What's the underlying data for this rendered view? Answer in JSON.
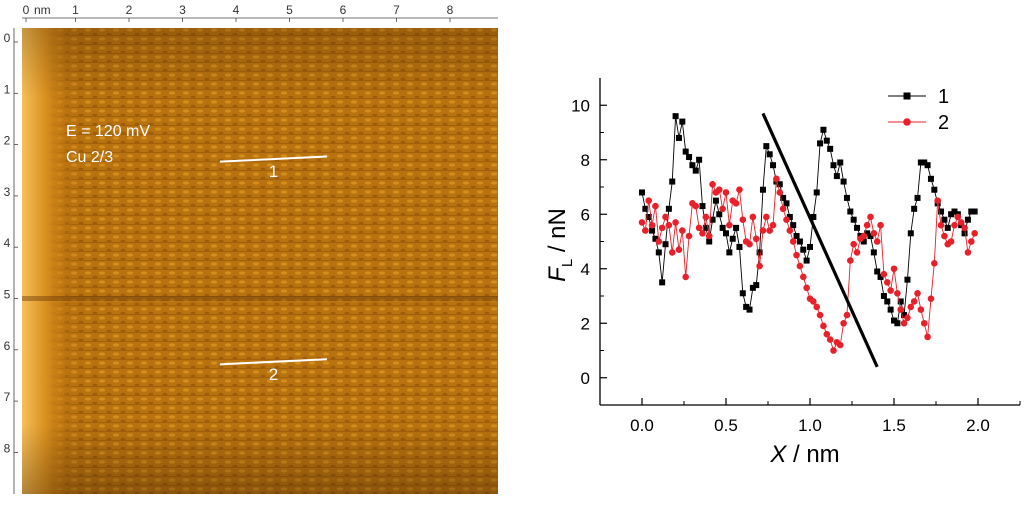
{
  "stm_image": {
    "x_axis_unit": "nm",
    "x_ticks": [
      "0",
      "1",
      "2",
      "3",
      "4",
      "5",
      "6",
      "7",
      "8"
    ],
    "y_ticks": [
      "0",
      "1",
      "2",
      "3",
      "4",
      "5",
      "6",
      "7",
      "8"
    ],
    "annotation_lines": [
      "E = 120 mV",
      "Cu 2/3"
    ],
    "profile_lines": [
      {
        "label": "1",
        "from_nm": [
          3.7,
          2.45
        ],
        "to_nm": [
          5.7,
          2.35
        ]
      },
      {
        "label": "2",
        "from_nm": [
          3.7,
          6.4
        ],
        "to_nm": [
          5.7,
          6.3
        ]
      }
    ],
    "colors": {
      "bright": "#f0a828",
      "dark": "#6a3a08",
      "mid": "#b8720f",
      "line": "#ffffff"
    }
  },
  "chart_data": {
    "type": "line",
    "xlabel_var": "X",
    "xlabel_unit": " / nm",
    "ylabel_var": "F",
    "ylabel_sub": "L",
    "ylabel_unit": " / nN",
    "xlim": [
      -0.25,
      2.25
    ],
    "ylim": [
      -1.0,
      11.0
    ],
    "x_ticks": [
      0.0,
      0.5,
      1.0,
      1.5,
      2.0
    ],
    "x_tick_labels": [
      "0.0",
      "0.5",
      "1.0",
      "1.5",
      "2.0"
    ],
    "y_ticks": [
      0,
      2,
      4,
      6,
      8,
      10
    ],
    "y_tick_labels": [
      "0",
      "2",
      "4",
      "6",
      "8",
      "10"
    ],
    "legend_position": "top-right",
    "series": [
      {
        "name": "1",
        "color": "#000000",
        "marker": "square",
        "x": [
          0.0,
          0.02,
          0.04,
          0.06,
          0.08,
          0.1,
          0.12,
          0.14,
          0.16,
          0.18,
          0.2,
          0.22,
          0.24,
          0.26,
          0.28,
          0.3,
          0.32,
          0.34,
          0.36,
          0.38,
          0.4,
          0.42,
          0.44,
          0.46,
          0.48,
          0.5,
          0.52,
          0.54,
          0.56,
          0.58,
          0.6,
          0.62,
          0.64,
          0.66,
          0.68,
          0.7,
          0.72,
          0.74,
          0.76,
          0.78,
          0.8,
          0.82,
          0.84,
          0.86,
          0.88,
          0.9,
          0.92,
          0.94,
          0.96,
          0.98,
          1.0,
          1.02,
          1.04,
          1.06,
          1.08,
          1.1,
          1.12,
          1.14,
          1.16,
          1.18,
          1.2,
          1.22,
          1.24,
          1.26,
          1.28,
          1.3,
          1.32,
          1.34,
          1.36,
          1.38,
          1.4,
          1.42,
          1.44,
          1.46,
          1.48,
          1.5,
          1.52,
          1.54,
          1.56,
          1.58,
          1.6,
          1.62,
          1.64,
          1.66,
          1.68,
          1.7,
          1.72,
          1.74,
          1.76,
          1.78,
          1.8,
          1.82,
          1.84,
          1.86,
          1.88,
          1.9,
          1.92,
          1.94,
          1.96,
          1.98
        ],
        "y": [
          6.8,
          6.2,
          5.9,
          5.4,
          5.1,
          4.6,
          3.5,
          4.9,
          6.2,
          7.2,
          9.6,
          8.8,
          9.4,
          8.3,
          8.1,
          7.8,
          7.6,
          8.0,
          6.3,
          5.5,
          5.0,
          5.8,
          6.5,
          6.0,
          5.5,
          5.3,
          4.6,
          5.1,
          5.5,
          4.8,
          3.1,
          2.6,
          2.5,
          3.3,
          3.4,
          4.6,
          6.9,
          8.5,
          8.2,
          7.8,
          7.2,
          7.1,
          6.6,
          6.4,
          5.9,
          5.6,
          5.2,
          5.0,
          4.7,
          4.3,
          4.8,
          5.9,
          6.8,
          8.6,
          9.1,
          8.7,
          8.4,
          7.8,
          7.4,
          7.9,
          7.2,
          6.6,
          6.1,
          5.8,
          5.5,
          5.2,
          5.0,
          5.3,
          5.2,
          4.6,
          3.9,
          3.7,
          3.0,
          2.8,
          2.5,
          2.1,
          2.0,
          2.8,
          2.3,
          3.6,
          5.3,
          6.2,
          6.6,
          7.9,
          7.9,
          7.8,
          7.3,
          6.9,
          6.4,
          6.1,
          5.8,
          5.5,
          6.0,
          6.1,
          6.0,
          5.6,
          5.3,
          5.8,
          6.1,
          6.1
        ]
      },
      {
        "name": "2",
        "color": "#e8202a",
        "marker": "circle",
        "x": [
          0.0,
          0.02,
          0.04,
          0.06,
          0.08,
          0.1,
          0.12,
          0.14,
          0.16,
          0.18,
          0.2,
          0.22,
          0.24,
          0.26,
          0.28,
          0.3,
          0.32,
          0.34,
          0.36,
          0.38,
          0.4,
          0.42,
          0.44,
          0.46,
          0.48,
          0.5,
          0.52,
          0.54,
          0.56,
          0.58,
          0.6,
          0.62,
          0.64,
          0.66,
          0.68,
          0.7,
          0.72,
          0.74,
          0.76,
          0.78,
          0.8,
          0.82,
          0.84,
          0.86,
          0.88,
          0.9,
          0.92,
          0.94,
          0.96,
          0.98,
          1.0,
          1.02,
          1.04,
          1.06,
          1.08,
          1.1,
          1.12,
          1.14,
          1.16,
          1.18,
          1.2,
          1.22,
          1.24,
          1.26,
          1.28,
          1.3,
          1.32,
          1.34,
          1.36,
          1.38,
          1.4,
          1.42,
          1.44,
          1.46,
          1.48,
          1.5,
          1.52,
          1.54,
          1.56,
          1.58,
          1.6,
          1.62,
          1.64,
          1.66,
          1.68,
          1.7,
          1.72,
          1.74,
          1.76,
          1.78,
          1.8,
          1.82,
          1.84,
          1.86,
          1.88,
          1.9,
          1.92,
          1.94,
          1.96,
          1.98
        ],
        "y": [
          5.7,
          5.4,
          6.5,
          5.6,
          6.3,
          5.0,
          5.5,
          5.9,
          5.6,
          4.6,
          5.7,
          4.7,
          5.4,
          3.7,
          5.2,
          6.4,
          6.3,
          5.5,
          5.3,
          5.9,
          5.2,
          7.1,
          6.8,
          6.9,
          6.2,
          6.8,
          5.6,
          6.5,
          6.4,
          6.9,
          5.8,
          5.0,
          4.9,
          5.9,
          5.1,
          4.1,
          5.4,
          5.9,
          5.4,
          5.6,
          7.3,
          6.8,
          6.2,
          5.8,
          5.4,
          5.0,
          4.5,
          4.1,
          3.7,
          3.3,
          2.9,
          2.8,
          2.6,
          2.3,
          1.9,
          1.6,
          1.4,
          1.0,
          1.3,
          1.2,
          2.0,
          2.3,
          4.3,
          4.9,
          4.6,
          5.1,
          5.2,
          5.6,
          5.9,
          5.3,
          5.0,
          5.6,
          3.8,
          3.5,
          3.2,
          4.0,
          3.1,
          2.5,
          2.0,
          2.2,
          2.6,
          2.8,
          3.1,
          2.5,
          2.0,
          1.5,
          2.9,
          4.2,
          6.5,
          5.6,
          5.2,
          4.9,
          5.0,
          5.6,
          5.9,
          5.7,
          5.5,
          4.6,
          5.0,
          5.3
        ]
      }
    ],
    "fit_line": {
      "x": [
        0.72,
        1.4
      ],
      "y": [
        9.7,
        0.4
      ],
      "color": "#000000"
    }
  }
}
